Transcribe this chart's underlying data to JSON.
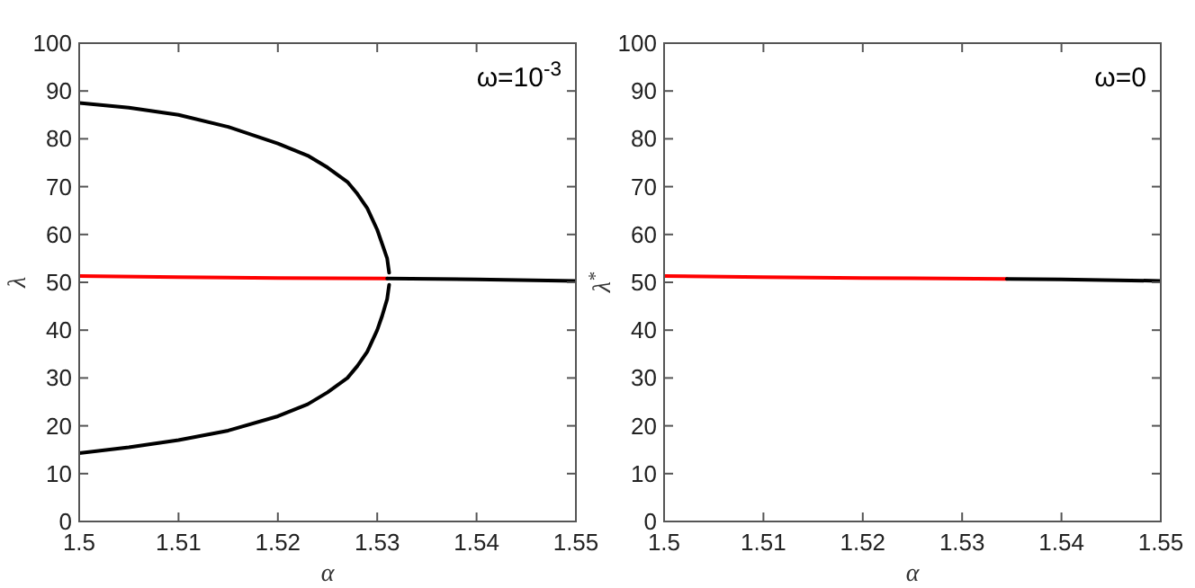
{
  "chart_data": [
    {
      "type": "line",
      "xlabel": "α",
      "ylabel": "λ",
      "annotations": [
        "ω=10$^{-3}$"
      ],
      "xlim": [
        1.5,
        1.55
      ],
      "ylim": [
        0,
        100
      ],
      "xticks": [
        1.5,
        1.51,
        1.52,
        1.53,
        1.54,
        1.55
      ],
      "yticks": [
        0,
        10,
        20,
        30,
        40,
        50,
        60,
        70,
        80,
        90,
        100
      ],
      "grid": false,
      "marker": "none",
      "line_style": "solid",
      "series": [
        {
          "color": "#000000",
          "x": [
            1.5,
            1.505,
            1.51,
            1.515,
            1.52,
            1.523,
            1.525,
            1.527,
            1.528,
            1.529,
            1.53,
            1.5305,
            1.531,
            1.5312
          ],
          "values": [
            87.5,
            86.5,
            85,
            82.5,
            79,
            76.5,
            74,
            71,
            68.5,
            65.5,
            61,
            58,
            55,
            52
          ]
        },
        {
          "color": "#000000",
          "x": [
            1.5,
            1.505,
            1.51,
            1.515,
            1.52,
            1.523,
            1.525,
            1.527,
            1.528,
            1.529,
            1.53,
            1.5305,
            1.531,
            1.5312
          ],
          "values": [
            14.3,
            15.5,
            17,
            19,
            22,
            24.5,
            27,
            30,
            32.5,
            35.5,
            40,
            43,
            46.5,
            49.5
          ]
        },
        {
          "color": "#ff0000",
          "x": [
            1.5,
            1.51,
            1.52,
            1.531
          ],
          "values": [
            51.3,
            51.1,
            50.9,
            50.8
          ]
        },
        {
          "color": "#000000",
          "x": [
            1.531,
            1.54,
            1.55
          ],
          "values": [
            50.8,
            50.6,
            50.3
          ]
        }
      ]
    },
    {
      "type": "line",
      "xlabel": "α",
      "ylabel": "λ$^{*}$",
      "annotations": [
        "ω=0"
      ],
      "xlim": [
        1.5,
        1.55
      ],
      "ylim": [
        0,
        100
      ],
      "xticks": [
        1.5,
        1.51,
        1.52,
        1.53,
        1.54,
        1.55
      ],
      "yticks": [
        0,
        10,
        20,
        30,
        40,
        50,
        60,
        70,
        80,
        90,
        100
      ],
      "grid": false,
      "marker": "none",
      "line_style": "solid",
      "series": [
        {
          "color": "#ff0000",
          "x": [
            1.5,
            1.51,
            1.52,
            1.5345
          ],
          "values": [
            51.3,
            51.1,
            50.9,
            50.7
          ]
        },
        {
          "color": "#000000",
          "x": [
            1.5345,
            1.54,
            1.55
          ],
          "values": [
            50.7,
            50.6,
            50.3
          ]
        }
      ]
    }
  ]
}
